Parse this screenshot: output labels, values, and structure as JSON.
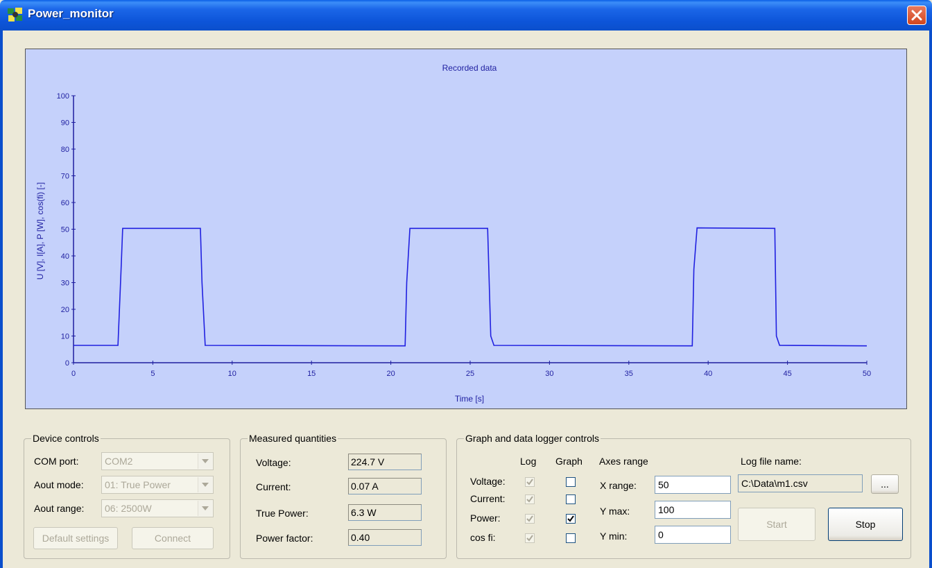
{
  "window": {
    "title": "Power_monitor"
  },
  "chart_data": {
    "type": "line",
    "title": "Recorded data",
    "xlabel": "Time [s]",
    "ylabel": "U [V], I[A], P [W], cos(fi) [-]",
    "xlim": [
      0,
      50
    ],
    "ylim": [
      0,
      100
    ],
    "xticks": [
      0,
      5,
      10,
      15,
      20,
      25,
      30,
      35,
      40,
      45,
      50
    ],
    "yticks": [
      0,
      10,
      20,
      30,
      40,
      50,
      60,
      70,
      80,
      90,
      100
    ],
    "grid": false,
    "series": [
      {
        "color": "#2020e0",
        "x": [
          0,
          2.8,
          3.0,
          3.1,
          8.0,
          8.1,
          8.3,
          20.9,
          21.0,
          21.2,
          26.1,
          26.3,
          26.5,
          39.0,
          39.1,
          39.3,
          44.2,
          44.3,
          44.5,
          50
        ],
        "y": [
          6.5,
          6.5,
          35,
          50.3,
          50.3,
          30,
          6.5,
          6.3,
          30,
          50.3,
          50.3,
          10,
          6.5,
          6.3,
          35,
          50.5,
          50.3,
          10,
          6.5,
          6.3
        ]
      }
    ]
  },
  "device_controls": {
    "title": "Device controls",
    "com_port_label": "COM port:",
    "com_port_value": "COM2",
    "aout_mode_label": "Aout mode:",
    "aout_mode_value": "01: True Power",
    "aout_range_label": "Aout range:",
    "aout_range_value": "06: 2500W",
    "default_settings_button": "Default settings",
    "connect_button": "Connect"
  },
  "measured": {
    "title": "Measured quantities",
    "rows": [
      {
        "label": "Voltage:",
        "value": "224.7 V"
      },
      {
        "label": "Current:",
        "value": "0.07 A"
      },
      {
        "label": "True Power:",
        "value": "6.3 W"
      },
      {
        "label": "Power factor:",
        "value": "0.40"
      }
    ]
  },
  "logger": {
    "title": "Graph and data logger controls",
    "log_header": "Log",
    "graph_header": "Graph",
    "rows": [
      {
        "label": "Voltage:",
        "log": true,
        "graph": false
      },
      {
        "label": "Current:",
        "log": true,
        "graph": false
      },
      {
        "label": "Power:",
        "log": true,
        "graph": true
      },
      {
        "label": "cos fi:",
        "log": true,
        "graph": false
      }
    ],
    "axes_range_label": "Axes range",
    "x_range_label": "X range:",
    "x_range_value": "50",
    "y_max_label": "Y max:",
    "y_max_value": "100",
    "y_min_label": "Y min:",
    "y_min_value": "0",
    "log_file_label": "Log file name:",
    "log_file_value": "C:\\Data\\m1.csv",
    "browse_button": "...",
    "start_button": "Start",
    "stop_button": "Stop"
  }
}
